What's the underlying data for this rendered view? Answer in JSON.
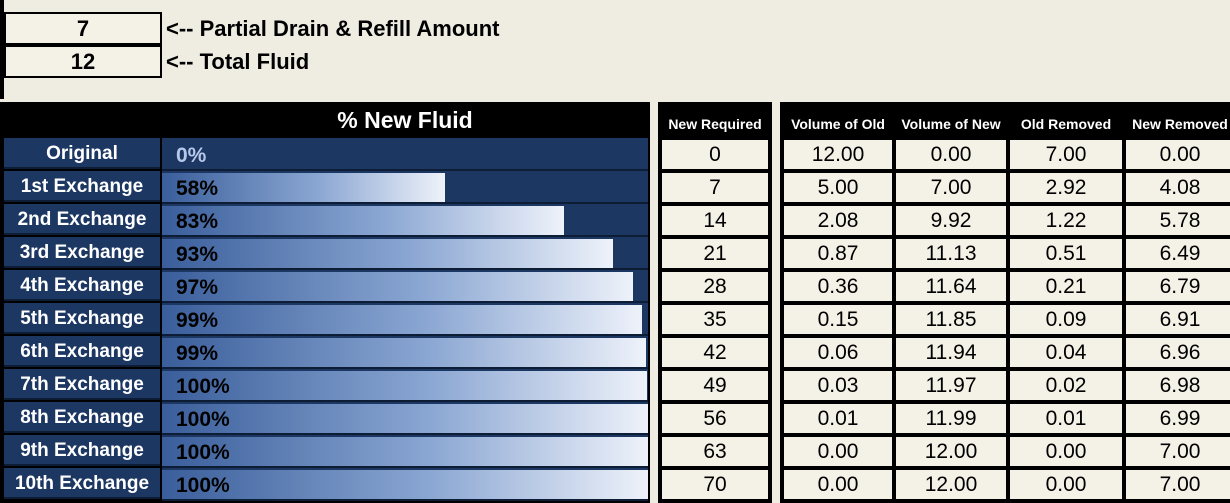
{
  "inputs": {
    "partial_amount": "7",
    "partial_label": "<-- Partial Drain & Refill Amount",
    "total_fluid": "12",
    "total_label": "<-- Total Fluid"
  },
  "chart": {
    "title": "% New Fluid"
  },
  "columns": {
    "new_required": "New Required",
    "volume_old": "Volume of Old",
    "volume_new": "Volume of New",
    "old_removed": "Old Removed",
    "new_removed": "New Removed"
  },
  "chart_data": {
    "type": "bar",
    "orientation": "horizontal",
    "title": "% New Fluid",
    "categories": [
      "Original",
      "1st Exchange",
      "2nd Exchange",
      "3rd Exchange",
      "4th Exchange",
      "5th Exchange",
      "6th Exchange",
      "7th Exchange",
      "8th Exchange",
      "9th Exchange",
      "10th Exchange"
    ],
    "labels": [
      "0%",
      "58%",
      "83%",
      "93%",
      "97%",
      "99%",
      "99%",
      "100%",
      "100%",
      "100%",
      "100%"
    ],
    "values": [
      0,
      58.3,
      82.7,
      92.8,
      97.0,
      98.8,
      99.5,
      99.8,
      99.9,
      100,
      100
    ],
    "xlim": [
      0,
      100
    ]
  },
  "rows": [
    {
      "label": "Original",
      "new_required": "0",
      "vol_old": "12.00",
      "vol_new": "0.00",
      "old_removed": "7.00",
      "new_removed": "0.00"
    },
    {
      "label": "1st Exchange",
      "new_required": "7",
      "vol_old": "5.00",
      "vol_new": "7.00",
      "old_removed": "2.92",
      "new_removed": "4.08"
    },
    {
      "label": "2nd Exchange",
      "new_required": "14",
      "vol_old": "2.08",
      "vol_new": "9.92",
      "old_removed": "1.22",
      "new_removed": "5.78"
    },
    {
      "label": "3rd Exchange",
      "new_required": "21",
      "vol_old": "0.87",
      "vol_new": "11.13",
      "old_removed": "0.51",
      "new_removed": "6.49"
    },
    {
      "label": "4th Exchange",
      "new_required": "28",
      "vol_old": "0.36",
      "vol_new": "11.64",
      "old_removed": "0.21",
      "new_removed": "6.79"
    },
    {
      "label": "5th Exchange",
      "new_required": "35",
      "vol_old": "0.15",
      "vol_new": "11.85",
      "old_removed": "0.09",
      "new_removed": "6.91"
    },
    {
      "label": "6th Exchange",
      "new_required": "42",
      "vol_old": "0.06",
      "vol_new": "11.94",
      "old_removed": "0.04",
      "new_removed": "6.96"
    },
    {
      "label": "7th Exchange",
      "new_required": "49",
      "vol_old": "0.03",
      "vol_new": "11.97",
      "old_removed": "0.02",
      "new_removed": "6.98"
    },
    {
      "label": "8th Exchange",
      "new_required": "56",
      "vol_old": "0.01",
      "vol_new": "11.99",
      "old_removed": "0.01",
      "new_removed": "6.99"
    },
    {
      "label": "9th Exchange",
      "new_required": "63",
      "vol_old": "0.00",
      "vol_new": "12.00",
      "old_removed": "0.00",
      "new_removed": "7.00"
    },
    {
      "label": "10th Exchange",
      "new_required": "70",
      "vol_old": "0.00",
      "vol_new": "12.00",
      "old_removed": "0.00",
      "new_removed": "7.00"
    }
  ]
}
